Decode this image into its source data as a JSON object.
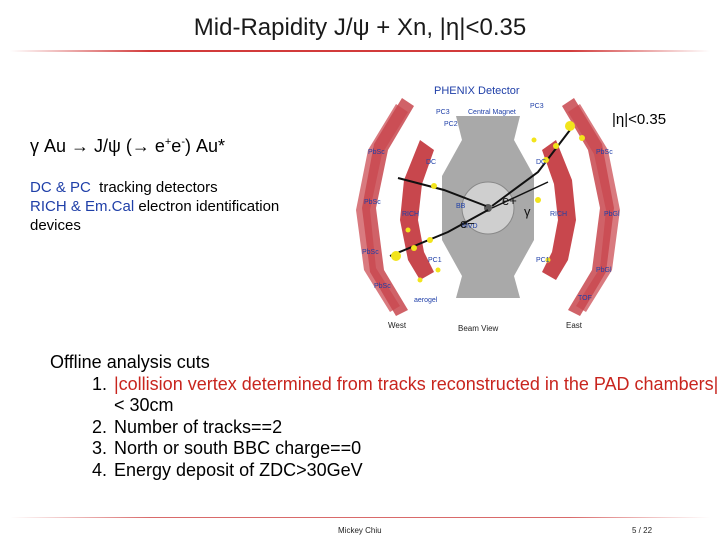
{
  "title": "Mid-Rapidity J/ψ + Xn, |η|<0.35",
  "reaction": {
    "prefix": "γ Au → J/ψ (→ e",
    "plus": "+",
    "mid": "e",
    "minus": "-",
    "suffix": ") Au*"
  },
  "detectors": {
    "line1_colored": "DC & PC",
    "line1_rest": "  tracking detectors",
    "line2_colored": "RICH & Em.Cal",
    "line2_rest": " electron identification",
    "line3": "devices"
  },
  "eta_label": "|η|<0.35",
  "figure": {
    "title": "PHENIX Detector",
    "labels": {
      "pc3_left": "PC3",
      "pc2": "PC2",
      "central_magnet": "Central\nMagnet",
      "pc3_right": "PC3",
      "pbsc_tl": "PbSc",
      "pbsc_ml": "PbSc",
      "pbsc_bl": "PbSc",
      "pbsc_bl2": "PbSc",
      "pbsc_tr": "PbSc",
      "pbgl_r1": "PbGl",
      "pbgl_r2": "PbGl",
      "rich_l": "RICH",
      "rich_r": "RICH",
      "dc_l": "DC",
      "dc_r": "DC",
      "pc1_l": "PC1",
      "pc1_r": "PC1",
      "bb": "BB",
      "mvd": "MVD",
      "aerogel": "aerogel",
      "tof": "TOF",
      "west": "West",
      "beam_view": "Beam View",
      "east": "East"
    },
    "annotations": {
      "e_plus": "e+",
      "e_minus": "e−",
      "gamma": "γ"
    },
    "colors": {
      "sector": "#c8474d",
      "arm": "#d97a7f",
      "hit": "#f2e41c",
      "track": "#111111"
    }
  },
  "cuts": {
    "heading": "Offline analysis cuts",
    "items": [
      {
        "num": "1.",
        "text_red": "|collision vertex determined from tracks reconstructed in the PAD chambers|",
        "text_black": "< 30cm"
      },
      {
        "num": "2.",
        "text": "Number of tracks==2"
      },
      {
        "num": "3.",
        "text": "North or south BBC charge==0"
      },
      {
        "num": "4.",
        "text": "Energy deposit of ZDC>30GeV"
      }
    ]
  },
  "footer": {
    "author": "Mickey Chiu",
    "page": "5 / 22"
  }
}
